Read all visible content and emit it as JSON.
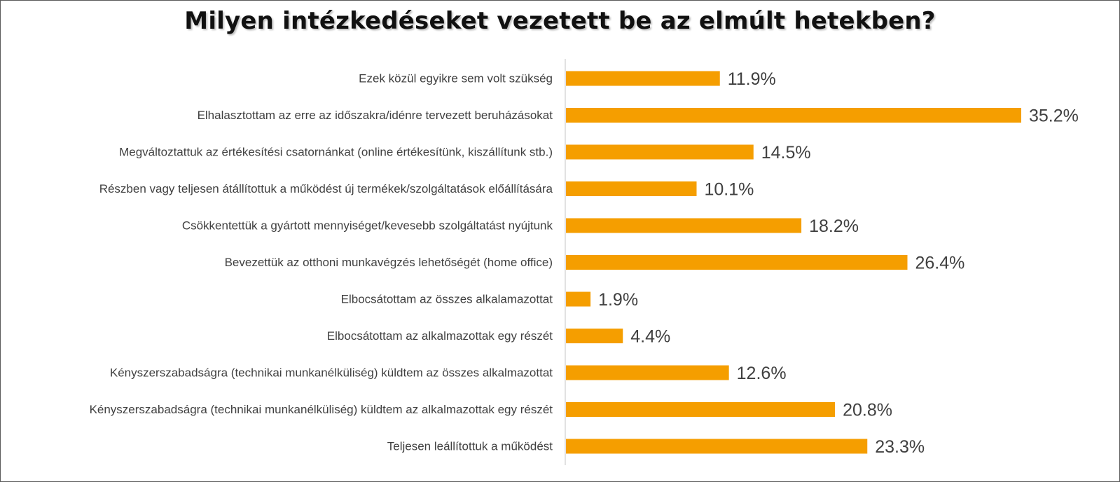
{
  "chart_data": {
    "type": "bar",
    "orientation": "horizontal",
    "title": "Milyen intézkedéseket vezetett be az elmúlt hetekben?",
    "xlabel": "",
    "ylabel": "",
    "xlim": [
      0,
      35.2
    ],
    "grid": false,
    "legend": null,
    "bar_color": "#F59E00",
    "axis_color": "#d9d9d9",
    "text_color": "#404040",
    "value_suffix": "%",
    "categories": [
      "Ezek közül egyikre sem volt szükség",
      "Elhalasztottam az erre az időszakra/idénre tervezett beruházásokat",
      "Megváltoztattuk az értékesítési csatornánkat (online értékesítünk, kiszállítunk stb.)",
      "Részben vagy teljesen átállítottuk a működést új termékek/szolgáltatások előállítására",
      "Csökkentettük a gyártott mennyiséget/kevesebb szolgáltatást nyújtunk",
      "Bevezettük az otthoni munkavégzés lehetőségét (home office)",
      "Elbocsátottam az összes alkalamazottat",
      "Elbocsátottam az alkalmazottak egy részét",
      "Kényszerszabadságra (technikai munkanélküliség) küldtem az összes alkalmazottat",
      "Kényszerszabadságra (technikai munkanélküliség) küldtem az alkalmazottak egy részét",
      "Teljesen leállítottuk a működést"
    ],
    "values": [
      11.9,
      35.2,
      14.5,
      10.1,
      18.2,
      26.4,
      1.9,
      4.4,
      12.6,
      20.8,
      23.3
    ],
    "value_labels": [
      "11.9%",
      "35.2%",
      "14.5%",
      "10.1%",
      "18.2%",
      "26.4%",
      "1.9%",
      "4.4%",
      "12.6%",
      "20.8%",
      "23.3%"
    ]
  }
}
